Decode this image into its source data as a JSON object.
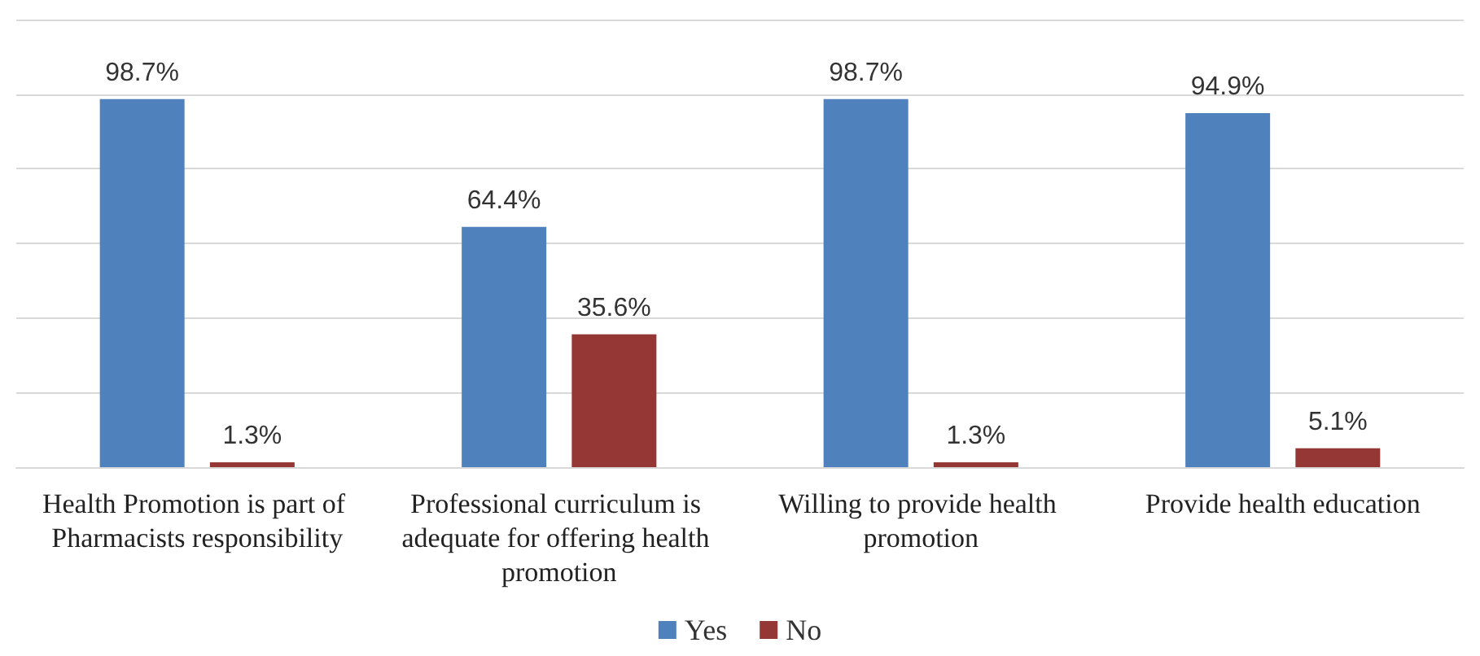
{
  "chart_data": {
    "type": "bar",
    "categories": [
      "Health Promotion is part of Pharmacists responsibility",
      "Professional curriculum is adequate for offering health promotion",
      "Willing to provide health promotion",
      "Provide health education"
    ],
    "series": [
      {
        "name": "Yes",
        "color": "#4f81bd",
        "values": [
          98.7,
          64.4,
          98.7,
          94.9
        ],
        "value_labels": [
          "98.7%",
          "64.4%",
          "98.7%",
          "94.9%"
        ]
      },
      {
        "name": "No",
        "color": "#953735",
        "values": [
          1.3,
          35.6,
          1.3,
          5.1
        ],
        "value_labels": [
          "1.3%",
          "35.6%",
          "1.3%",
          "5.1%"
        ]
      }
    ],
    "ylim": [
      0,
      120
    ],
    "yticks": [
      {
        "value": 0,
        "label": null
      },
      {
        "value": 20,
        "label": null
      },
      {
        "value": 40,
        "label": null
      },
      {
        "value": 60,
        "label": null
      },
      {
        "value": 80,
        "label": null
      },
      {
        "value": 100,
        "label": null
      },
      {
        "value": 120,
        "label": null
      }
    ],
    "tick_labels": "x",
    "grid": "y",
    "legend": "bottom"
  }
}
